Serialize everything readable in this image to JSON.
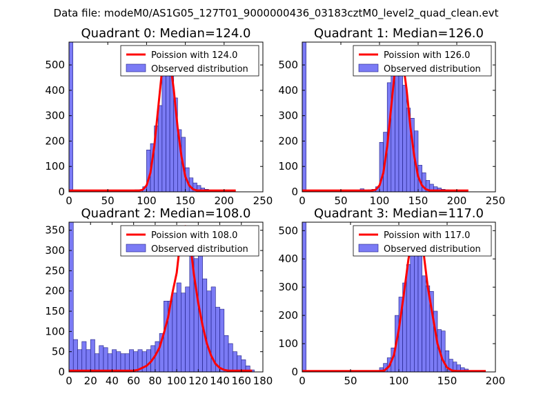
{
  "figure": {
    "suptitle": "Data file: modeM0/AS1G05_127T01_9000000436_03183cztM0_level2_quad_clean.evt"
  },
  "colors": {
    "hist_fill": "#7b7bf5",
    "hist_edge": "#1a1a80",
    "poisson_line": "#ff0000",
    "legend_edge": "#000000"
  },
  "chart_data": [
    {
      "type": "bar",
      "title": "Quadrant 0: Median=124.0",
      "xlim": [
        0,
        250
      ],
      "ylim": [
        0,
        590
      ],
      "xticks": [
        0,
        50,
        100,
        150,
        200,
        250
      ],
      "yticks": [
        0,
        100,
        200,
        300,
        400,
        500
      ],
      "legend": {
        "position": "top-right",
        "entries": [
          "Poission with 124.0",
          "Observed distribution"
        ]
      },
      "histogram": {
        "bin_width": 5,
        "bins": [
          [
            0,
            590
          ],
          [
            65,
            5
          ],
          [
            70,
            5
          ],
          [
            75,
            5
          ],
          [
            80,
            3
          ],
          [
            85,
            8
          ],
          [
            90,
            8
          ],
          [
            95,
            20
          ],
          [
            100,
            165
          ],
          [
            105,
            190
          ],
          [
            110,
            260
          ],
          [
            115,
            340
          ],
          [
            120,
            520
          ],
          [
            125,
            560
          ],
          [
            130,
            465
          ],
          [
            135,
            370
          ],
          [
            140,
            245
          ],
          [
            145,
            215
          ],
          [
            150,
            95
          ],
          [
            155,
            55
          ],
          [
            160,
            35
          ],
          [
            165,
            25
          ],
          [
            170,
            15
          ],
          [
            175,
            10
          ],
          [
            180,
            5
          ],
          [
            185,
            5
          ],
          [
            190,
            3
          ]
        ]
      },
      "poisson": {
        "mean": 124.0,
        "x": [
          0,
          90,
          95,
          100,
          105,
          110,
          115,
          120,
          125,
          130,
          135,
          140,
          145,
          150,
          155,
          160,
          165,
          170,
          175,
          180,
          200,
          215
        ],
        "y": [
          5,
          5,
          8,
          25,
          75,
          180,
          330,
          480,
          555,
          520,
          405,
          255,
          140,
          60,
          25,
          10,
          5,
          5,
          5,
          5,
          5,
          5
        ]
      }
    },
    {
      "type": "bar",
      "title": "Quadrant 1: Median=126.0",
      "xlim": [
        0,
        250
      ],
      "ylim": [
        0,
        590
      ],
      "xticks": [
        0,
        50,
        100,
        150,
        200,
        250
      ],
      "yticks": [
        0,
        100,
        200,
        300,
        400,
        500
      ],
      "legend": {
        "position": "top-right",
        "entries": [
          "Poission with 126.0",
          "Observed distribution"
        ]
      },
      "histogram": {
        "bin_width": 5,
        "bins": [
          [
            0,
            590
          ],
          [
            75,
            12
          ],
          [
            80,
            3
          ],
          [
            85,
            8
          ],
          [
            90,
            10
          ],
          [
            95,
            20
          ],
          [
            100,
            195
          ],
          [
            105,
            235
          ],
          [
            110,
            430
          ],
          [
            115,
            520
          ],
          [
            120,
            545
          ],
          [
            125,
            465
          ],
          [
            130,
            420
          ],
          [
            135,
            330
          ],
          [
            140,
            290
          ],
          [
            145,
            240
          ],
          [
            150,
            105
          ],
          [
            155,
            75
          ],
          [
            160,
            45
          ],
          [
            165,
            30
          ],
          [
            170,
            20
          ],
          [
            175,
            15
          ],
          [
            180,
            10
          ],
          [
            185,
            8
          ],
          [
            190,
            5
          ]
        ]
      },
      "poisson": {
        "mean": 126.0,
        "x": [
          0,
          90,
          95,
          100,
          105,
          110,
          115,
          120,
          125,
          130,
          135,
          140,
          145,
          150,
          155,
          160,
          165,
          170,
          175,
          180,
          200,
          215
        ],
        "y": [
          5,
          5,
          8,
          25,
          75,
          180,
          330,
          480,
          555,
          520,
          405,
          255,
          140,
          60,
          25,
          10,
          5,
          5,
          5,
          5,
          5,
          5
        ]
      }
    },
    {
      "type": "bar",
      "title": "Quadrant 2: Median=108.0",
      "xlim": [
        0,
        180
      ],
      "ylim": [
        0,
        370
      ],
      "xticks": [
        0,
        20,
        40,
        60,
        80,
        100,
        120,
        140,
        160,
        180
      ],
      "yticks": [
        0,
        50,
        100,
        150,
        200,
        250,
        300,
        350
      ],
      "legend": {
        "position": "top-right",
        "entries": [
          "Poission with 108.0",
          "Observed distribution"
        ]
      },
      "histogram": {
        "bin_width": 4,
        "bins": [
          [
            0,
            370
          ],
          [
            4,
            80
          ],
          [
            8,
            55
          ],
          [
            12,
            75
          ],
          [
            16,
            55
          ],
          [
            20,
            80
          ],
          [
            24,
            45
          ],
          [
            28,
            65
          ],
          [
            32,
            60
          ],
          [
            36,
            45
          ],
          [
            40,
            55
          ],
          [
            44,
            50
          ],
          [
            48,
            45
          ],
          [
            52,
            45
          ],
          [
            56,
            55
          ],
          [
            60,
            50
          ],
          [
            64,
            55
          ],
          [
            68,
            50
          ],
          [
            72,
            55
          ],
          [
            76,
            65
          ],
          [
            80,
            75
          ],
          [
            84,
            95
          ],
          [
            88,
            175
          ],
          [
            92,
            175
          ],
          [
            96,
            195
          ],
          [
            100,
            220
          ],
          [
            104,
            195
          ],
          [
            108,
            210
          ],
          [
            112,
            330
          ],
          [
            116,
            280
          ],
          [
            120,
            290
          ],
          [
            124,
            230
          ],
          [
            128,
            200
          ],
          [
            132,
            210
          ],
          [
            136,
            160
          ],
          [
            140,
            155
          ],
          [
            144,
            90
          ],
          [
            148,
            70
          ],
          [
            152,
            50
          ],
          [
            156,
            40
          ],
          [
            160,
            30
          ],
          [
            164,
            15
          ],
          [
            168,
            5
          ]
        ]
      },
      "poisson": {
        "mean": 108.0,
        "x": [
          0,
          60,
          64,
          68,
          72,
          76,
          80,
          84,
          88,
          92,
          96,
          100,
          104,
          108,
          112,
          116,
          120,
          124,
          128,
          132,
          136,
          140,
          144,
          148,
          152,
          156,
          160,
          170
        ],
        "y": [
          3,
          3,
          5,
          10,
          15,
          25,
          40,
          60,
          95,
          135,
          195,
          245,
          340,
          360,
          330,
          240,
          170,
          115,
          70,
          40,
          20,
          10,
          5,
          3,
          3,
          3,
          3,
          3
        ]
      }
    },
    {
      "type": "bar",
      "title": "Quadrant 3: Median=117.0",
      "xlim": [
        0,
        200
      ],
      "ylim": [
        0,
        530
      ],
      "xticks": [
        0,
        50,
        100,
        150,
        200
      ],
      "yticks": [
        0,
        100,
        200,
        300,
        400,
        500
      ],
      "legend": {
        "position": "top-right",
        "entries": [
          "Poission with 117.0",
          "Observed distribution"
        ]
      },
      "histogram": {
        "bin_width": 4,
        "bins": [
          [
            0,
            530
          ],
          [
            76,
            5
          ],
          [
            80,
            15
          ],
          [
            84,
            30
          ],
          [
            88,
            50
          ],
          [
            92,
            85
          ],
          [
            96,
            200
          ],
          [
            100,
            265
          ],
          [
            104,
            315
          ],
          [
            108,
            380
          ],
          [
            112,
            505
          ],
          [
            116,
            445
          ],
          [
            120,
            415
          ],
          [
            124,
            340
          ],
          [
            128,
            305
          ],
          [
            132,
            285
          ],
          [
            136,
            215
          ],
          [
            140,
            150
          ],
          [
            144,
            145
          ],
          [
            148,
            75
          ],
          [
            152,
            45
          ],
          [
            156,
            35
          ],
          [
            160,
            25
          ],
          [
            164,
            15
          ],
          [
            168,
            10
          ],
          [
            172,
            5
          ]
        ]
      },
      "poisson": {
        "mean": 117.0,
        "x": [
          0,
          80,
          85,
          90,
          95,
          100,
          105,
          110,
          115,
          120,
          125,
          130,
          135,
          140,
          145,
          150,
          155,
          160,
          165,
          170,
          190
        ],
        "y": [
          3,
          3,
          5,
          20,
          60,
          150,
          270,
          400,
          490,
          495,
          440,
          300,
          200,
          100,
          45,
          15,
          5,
          3,
          3,
          3,
          3
        ]
      }
    }
  ]
}
